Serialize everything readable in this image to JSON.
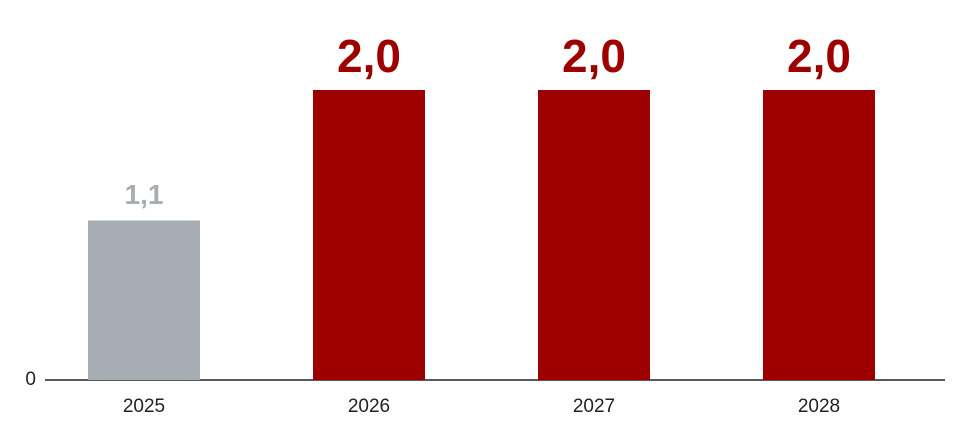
{
  "chart_data": {
    "type": "bar",
    "categories": [
      "2025",
      "2026",
      "2027",
      "2028"
    ],
    "values": [
      1.1,
      2.0,
      2.0,
      2.0
    ],
    "value_labels": [
      "1,1",
      "2,0",
      "2,0",
      "2,0"
    ],
    "colors": [
      "#a6adb4",
      "#9e0000",
      "#9e0000",
      "#9e0000"
    ],
    "ylim": [
      0,
      2.5
    ],
    "yticks": [
      0
    ]
  }
}
